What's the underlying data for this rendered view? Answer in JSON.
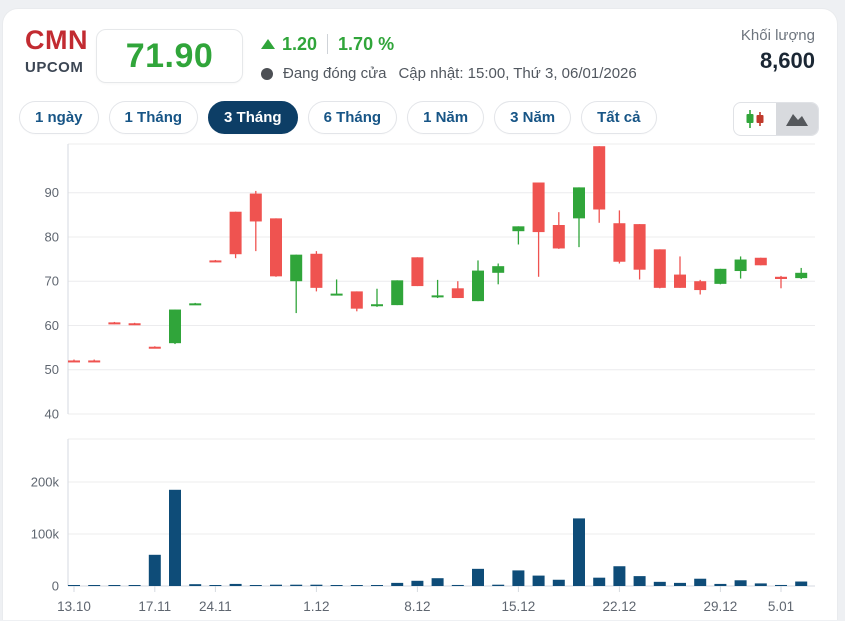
{
  "header": {
    "symbol": "CMN",
    "exchange": "UPCOM",
    "price": "71.90",
    "change": "1.20",
    "change_percent": "1.70 %",
    "status_text": "Đang đóng cửa",
    "updated_text": "Cập nhật: 15:00, Thứ 3, 06/01/2026",
    "volume_label": "Khối lượng",
    "volume_value": "8,600"
  },
  "ranges": [
    {
      "label": "1 ngày",
      "active": false
    },
    {
      "label": "1 Tháng",
      "active": false
    },
    {
      "label": "3 Tháng",
      "active": true
    },
    {
      "label": "6 Tháng",
      "active": false
    },
    {
      "label": "1 Năm",
      "active": false
    },
    {
      "label": "3 Năm",
      "active": false
    },
    {
      "label": "Tất cả",
      "active": false
    }
  ],
  "chart_toggle": {
    "options": [
      "candlestick-chart",
      "area-chart"
    ],
    "highlighted": "area-chart"
  },
  "colors": {
    "up_green": "#30a53a",
    "down_red": "#ef5350",
    "volume_navy": "#0e4c78",
    "ticker_red": "#c22b31",
    "accent_navy": "#0d3e66",
    "grid": "#ececee",
    "axis_line": "#d6dae0",
    "axis_text": "#5f6670"
  },
  "chart_data": {
    "type": "candlestick",
    "title": "CMN 3-month price and volume",
    "price_axis": {
      "ticks": [
        40,
        50,
        60,
        70,
        80,
        90
      ],
      "ylim": [
        40,
        101
      ]
    },
    "volume_axis": {
      "tick_labels": [
        "0",
        "100k",
        "200k"
      ],
      "tick_values": [
        0,
        100000,
        200000
      ]
    },
    "x_ticks": [
      {
        "label": "13.10",
        "index": 0
      },
      {
        "label": "17.11",
        "index": 4
      },
      {
        "label": "24.11",
        "index": 7
      },
      {
        "label": "1.12",
        "index": 12
      },
      {
        "label": "8.12",
        "index": 17
      },
      {
        "label": "15.12",
        "index": 22
      },
      {
        "label": "22.12",
        "index": 27
      },
      {
        "label": "29.12",
        "index": 32
      },
      {
        "label": "5.01",
        "index": 35
      }
    ],
    "series_note": "candles = [open, high, low, close, volume] per trading day",
    "candles": [
      [
        52.1,
        52.3,
        51.9,
        51.9,
        400
      ],
      [
        52.1,
        52.3,
        51.9,
        51.9,
        400
      ],
      [
        60.7,
        60.8,
        60.3,
        60.4,
        500
      ],
      [
        60.5,
        60.6,
        60.1,
        60.2,
        500
      ],
      [
        55.2,
        55.3,
        54.8,
        54.9,
        60000
      ],
      [
        56.0,
        63.6,
        55.8,
        63.6,
        185000
      ],
      [
        64.8,
        65.1,
        64.7,
        65.0,
        3500
      ],
      [
        74.7,
        74.8,
        74.3,
        74.4,
        1500
      ],
      [
        85.7,
        85.7,
        75.2,
        76.1,
        4000
      ],
      [
        89.8,
        90.4,
        76.8,
        83.5,
        1500
      ],
      [
        84.2,
        84.2,
        71.0,
        71.1,
        2500
      ],
      [
        70.0,
        76.0,
        62.8,
        76.0,
        2500
      ],
      [
        76.2,
        76.8,
        67.7,
        68.5,
        2500
      ],
      [
        67.0,
        70.4,
        66.8,
        67.2,
        1500
      ],
      [
        67.7,
        67.7,
        63.2,
        63.8,
        1800
      ],
      [
        64.4,
        68.3,
        64.2,
        64.8,
        1200
      ],
      [
        64.6,
        70.2,
        64.6,
        70.2,
        6000
      ],
      [
        75.4,
        75.4,
        68.9,
        68.9,
        10000
      ],
      [
        66.4,
        70.3,
        66.2,
        66.8,
        15000
      ],
      [
        68.4,
        70.0,
        66.2,
        66.2,
        2000
      ],
      [
        65.5,
        74.7,
        65.5,
        72.4,
        33000
      ],
      [
        71.9,
        74.0,
        69.3,
        73.4,
        2500
      ],
      [
        81.3,
        82.4,
        78.3,
        82.4,
        30000
      ],
      [
        92.3,
        92.3,
        71.0,
        81.1,
        20000
      ],
      [
        82.7,
        85.6,
        77.3,
        77.4,
        12000
      ],
      [
        84.2,
        91.2,
        77.7,
        91.2,
        130000
      ],
      [
        100.5,
        100.5,
        83.2,
        86.2,
        16000
      ],
      [
        83.1,
        86.0,
        74.0,
        74.4,
        38000
      ],
      [
        82.9,
        82.9,
        70.4,
        72.6,
        19000
      ],
      [
        77.2,
        77.2,
        68.4,
        68.5,
        8000
      ],
      [
        71.5,
        75.6,
        68.5,
        68.5,
        6000
      ],
      [
        70.0,
        70.3,
        67.0,
        68.0,
        14000
      ],
      [
        69.4,
        72.8,
        69.3,
        72.8,
        4000
      ],
      [
        72.3,
        75.6,
        70.6,
        74.9,
        11000
      ],
      [
        75.3,
        75.3,
        73.6,
        73.6,
        5000
      ],
      [
        71.0,
        71.2,
        68.4,
        70.5,
        2000
      ],
      [
        70.7,
        73.0,
        70.5,
        71.9,
        8600
      ]
    ]
  }
}
